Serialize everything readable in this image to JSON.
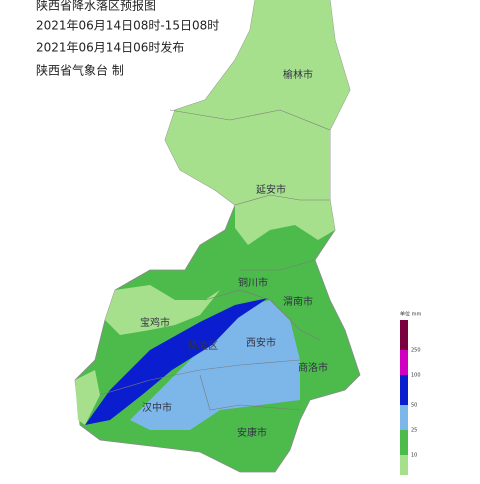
{
  "header": {
    "title": "陕西省降水落区预报图",
    "period": "2021年06月14日08时-15日08时",
    "issued": "2021年06月14日06时发布",
    "issuer": "陕西省气象台 制"
  },
  "cities": [
    "榆林市",
    "延安市",
    "铜川市",
    "渭南市",
    "宝鸡市",
    "杨凌区",
    "西安市",
    "商洛市",
    "汉中市",
    "安康市"
  ],
  "legend": {
    "unit": "单位 mm",
    "levels": [
      "250",
      "100",
      "50",
      "25",
      "10"
    ]
  }
}
